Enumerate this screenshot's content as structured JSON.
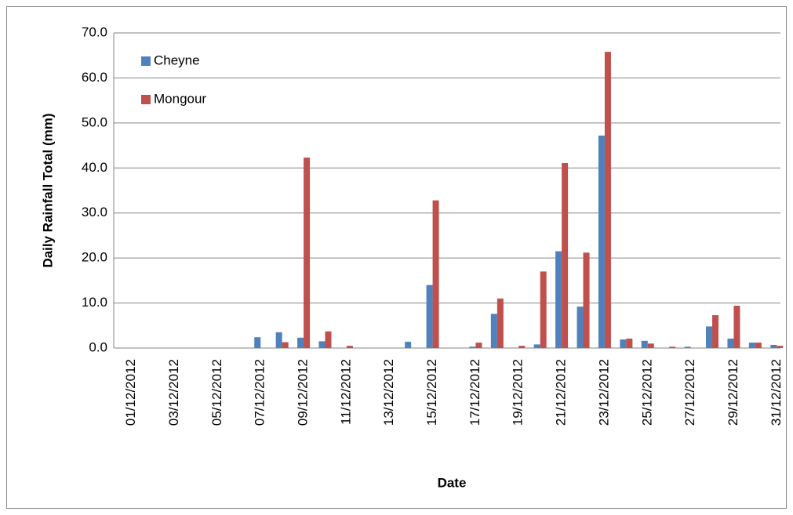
{
  "chart_data": {
    "type": "bar",
    "ylabel": "Daily Rainfall Total (mm)",
    "xlabel": "Date",
    "categories": [
      "01/12/2012",
      null,
      "03/12/2012",
      null,
      "05/12/2012",
      null,
      "07/12/2012",
      null,
      "09/12/2012",
      null,
      "11/12/2012",
      null,
      "13/12/2012",
      null,
      "15/12/2012",
      null,
      "17/12/2012",
      null,
      "19/12/2012",
      null,
      "21/12/2012",
      null,
      "23/12/2012",
      null,
      "25/12/2012",
      null,
      "27/12/2012",
      null,
      "29/12/2012",
      null,
      "31/12/2012"
    ],
    "series": [
      {
        "name": "Cheyne",
        "color": "#4f81bd",
        "values": [
          0,
          0,
          0,
          0,
          0,
          0,
          2.4,
          3.5,
          2.3,
          1.5,
          0,
          0,
          0,
          1.4,
          14.0,
          0,
          0.3,
          7.6,
          0,
          0.8,
          21.5,
          9.2,
          47.2,
          1.9,
          1.6,
          0,
          0.3,
          4.8,
          2.1,
          1.2,
          0.7
        ]
      },
      {
        "name": "Mongour",
        "color": "#c0504d",
        "values": [
          0,
          0,
          0,
          0,
          0,
          0,
          0,
          1.3,
          42.3,
          3.7,
          0.5,
          0,
          0,
          0,
          32.8,
          0,
          1.2,
          11.0,
          0.5,
          17.0,
          41.1,
          21.2,
          65.8,
          2.1,
          1.0,
          0.3,
          0,
          7.3,
          9.4,
          1.2,
          0.5
        ]
      }
    ],
    "ylim": [
      0,
      70
    ],
    "yticks": [
      {
        "value": 0,
        "label": "0.0"
      },
      {
        "value": 10,
        "label": "10.0"
      },
      {
        "value": 20,
        "label": "20.0"
      },
      {
        "value": 30,
        "label": "30.0"
      },
      {
        "value": 40,
        "label": "40.0"
      },
      {
        "value": 50,
        "label": "50.0"
      },
      {
        "value": 60,
        "label": "60.0"
      },
      {
        "value": 70,
        "label": "70.0"
      }
    ],
    "grid": true
  }
}
